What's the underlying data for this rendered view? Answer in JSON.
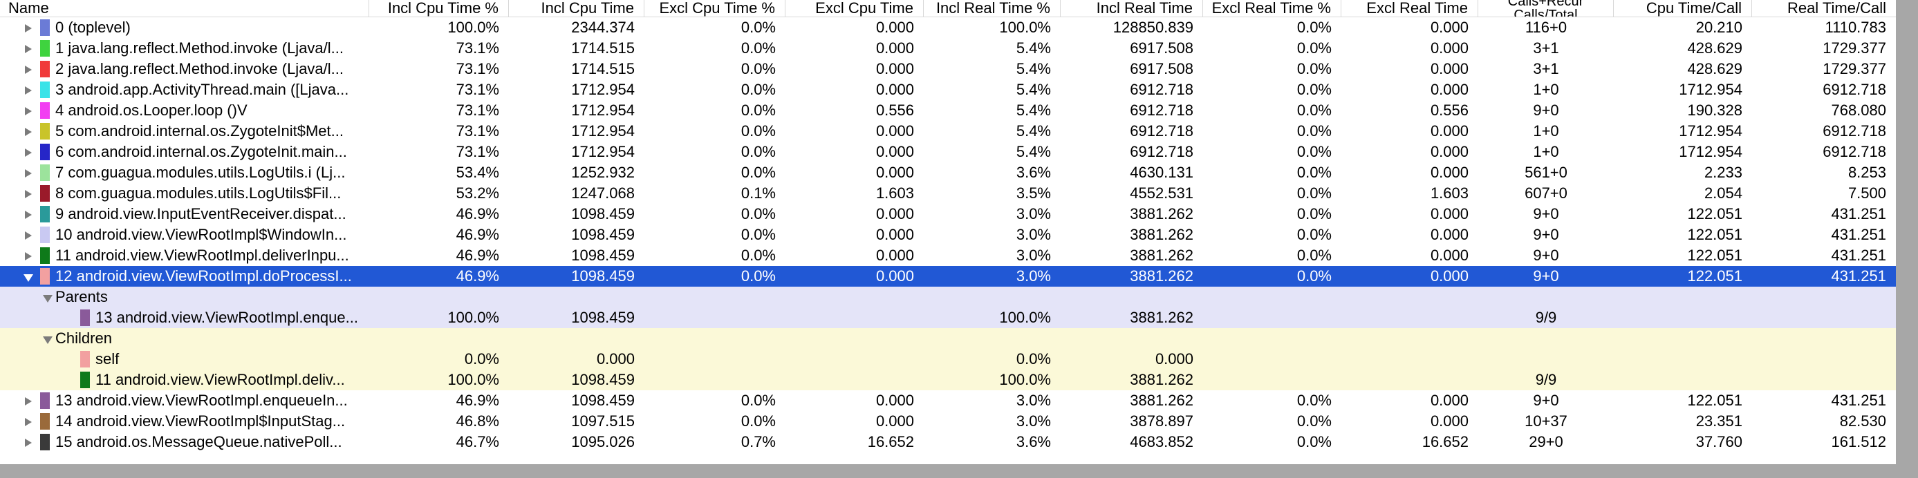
{
  "columns": {
    "name": "Name",
    "incl_cpu_pct": "Incl Cpu Time %",
    "incl_cpu": "Incl Cpu Time",
    "excl_cpu_pct": "Excl Cpu Time %",
    "excl_cpu": "Excl Cpu Time",
    "incl_real_pct": "Incl Real Time %",
    "incl_real": "Incl Real Time",
    "excl_real_pct": "Excl Real Time %",
    "excl_real": "Excl Real Time",
    "calls_line1": "Calls+Recur",
    "calls_line2": "Calls/Total",
    "cpu_per_call": "Cpu Time/Call",
    "real_per_call": "Real Time/Call"
  },
  "rows": [
    {
      "name": "0 (toplevel)",
      "color": "#6b7bd6",
      "incl_cpu_pct": "100.0%",
      "incl_cpu": "2344.374",
      "excl_cpu_pct": "0.0%",
      "excl_cpu": "0.000",
      "incl_real_pct": "100.0%",
      "incl_real": "128850.839",
      "excl_real_pct": "0.0%",
      "excl_real": "0.000",
      "calls": "116+0",
      "cpu_per_call": "20.210",
      "real_per_call": "1110.783"
    },
    {
      "name": "1 java.lang.reflect.Method.invoke (Ljava/l...",
      "color": "#3fd33f",
      "incl_cpu_pct": "73.1%",
      "incl_cpu": "1714.515",
      "excl_cpu_pct": "0.0%",
      "excl_cpu": "0.000",
      "incl_real_pct": "5.4%",
      "incl_real": "6917.508",
      "excl_real_pct": "0.0%",
      "excl_real": "0.000",
      "calls": "3+1",
      "cpu_per_call": "428.629",
      "real_per_call": "1729.377"
    },
    {
      "name": "2 java.lang.reflect.Method.invoke (Ljava/l...",
      "color": "#f03a3a",
      "incl_cpu_pct": "73.1%",
      "incl_cpu": "1714.515",
      "excl_cpu_pct": "0.0%",
      "excl_cpu": "0.000",
      "incl_real_pct": "5.4%",
      "incl_real": "6917.508",
      "excl_real_pct": "0.0%",
      "excl_real": "0.000",
      "calls": "3+1",
      "cpu_per_call": "428.629",
      "real_per_call": "1729.377"
    },
    {
      "name": "3 android.app.ActivityThread.main ([Ljava...",
      "color": "#3ae3e8",
      "incl_cpu_pct": "73.1%",
      "incl_cpu": "1712.954",
      "excl_cpu_pct": "0.0%",
      "excl_cpu": "0.000",
      "incl_real_pct": "5.4%",
      "incl_real": "6912.718",
      "excl_real_pct": "0.0%",
      "excl_real": "0.000",
      "calls": "1+0",
      "cpu_per_call": "1712.954",
      "real_per_call": "6912.718"
    },
    {
      "name": "4 android.os.Looper.loop ()V",
      "color": "#f23ef2",
      "incl_cpu_pct": "73.1%",
      "incl_cpu": "1712.954",
      "excl_cpu_pct": "0.0%",
      "excl_cpu": "0.556",
      "incl_real_pct": "5.4%",
      "incl_real": "6912.718",
      "excl_real_pct": "0.0%",
      "excl_real": "0.556",
      "calls": "9+0",
      "cpu_per_call": "190.328",
      "real_per_call": "768.080"
    },
    {
      "name": "5 com.android.internal.os.ZygoteInit$Met...",
      "color": "#c9c42a",
      "incl_cpu_pct": "73.1%",
      "incl_cpu": "1712.954",
      "excl_cpu_pct": "0.0%",
      "excl_cpu": "0.000",
      "incl_real_pct": "5.4%",
      "incl_real": "6912.718",
      "excl_real_pct": "0.0%",
      "excl_real": "0.000",
      "calls": "1+0",
      "cpu_per_call": "1712.954",
      "real_per_call": "6912.718"
    },
    {
      "name": "6 com.android.internal.os.ZygoteInit.main...",
      "color": "#2626c8",
      "incl_cpu_pct": "73.1%",
      "incl_cpu": "1712.954",
      "excl_cpu_pct": "0.0%",
      "excl_cpu": "0.000",
      "incl_real_pct": "5.4%",
      "incl_real": "6912.718",
      "excl_real_pct": "0.0%",
      "excl_real": "0.000",
      "calls": "1+0",
      "cpu_per_call": "1712.954",
      "real_per_call": "6912.718"
    },
    {
      "name": "7 com.guagua.modules.utils.LogUtils.i (Lj...",
      "color": "#9ce39c",
      "incl_cpu_pct": "53.4%",
      "incl_cpu": "1252.932",
      "excl_cpu_pct": "0.0%",
      "excl_cpu": "0.000",
      "incl_real_pct": "3.6%",
      "incl_real": "4630.131",
      "excl_real_pct": "0.0%",
      "excl_real": "0.000",
      "calls": "561+0",
      "cpu_per_call": "2.233",
      "real_per_call": "8.253"
    },
    {
      "name": "8 com.guagua.modules.utils.LogUtils$Fil...",
      "color": "#9a1a2a",
      "incl_cpu_pct": "53.2%",
      "incl_cpu": "1247.068",
      "excl_cpu_pct": "0.1%",
      "excl_cpu": "1.603",
      "incl_real_pct": "3.5%",
      "incl_real": "4552.531",
      "excl_real_pct": "0.0%",
      "excl_real": "1.603",
      "calls": "607+0",
      "cpu_per_call": "2.054",
      "real_per_call": "7.500"
    },
    {
      "name": "9 android.view.InputEventReceiver.dispat...",
      "color": "#2a9a9a",
      "incl_cpu_pct": "46.9%",
      "incl_cpu": "1098.459",
      "excl_cpu_pct": "0.0%",
      "excl_cpu": "0.000",
      "incl_real_pct": "3.0%",
      "incl_real": "3881.262",
      "excl_real_pct": "0.0%",
      "excl_real": "0.000",
      "calls": "9+0",
      "cpu_per_call": "122.051",
      "real_per_call": "431.251"
    },
    {
      "name": "10 android.view.ViewRootImpl$WindowIn...",
      "color": "#c9c9f2",
      "incl_cpu_pct": "46.9%",
      "incl_cpu": "1098.459",
      "excl_cpu_pct": "0.0%",
      "excl_cpu": "0.000",
      "incl_real_pct": "3.0%",
      "incl_real": "3881.262",
      "excl_real_pct": "0.0%",
      "excl_real": "0.000",
      "calls": "9+0",
      "cpu_per_call": "122.051",
      "real_per_call": "431.251"
    },
    {
      "name": "11 android.view.ViewRootImpl.deliverInpu...",
      "color": "#0e7a1a",
      "incl_cpu_pct": "46.9%",
      "incl_cpu": "1098.459",
      "excl_cpu_pct": "0.0%",
      "excl_cpu": "0.000",
      "incl_real_pct": "3.0%",
      "incl_real": "3881.262",
      "excl_real_pct": "0.0%",
      "excl_real": "0.000",
      "calls": "9+0",
      "cpu_per_call": "122.051",
      "real_per_call": "431.251"
    }
  ],
  "selected_row": {
    "name": "12 android.view.ViewRootImpl.doProcessI...",
    "color": "#f2a0a0",
    "incl_cpu_pct": "46.9%",
    "incl_cpu": "1098.459",
    "excl_cpu_pct": "0.0%",
    "excl_cpu": "0.000",
    "incl_real_pct": "3.0%",
    "incl_real": "3881.262",
    "excl_real_pct": "0.0%",
    "excl_real": "0.000",
    "calls": "9+0",
    "cpu_per_call": "122.051",
    "real_per_call": "431.251"
  },
  "parents": {
    "label": "Parents",
    "items": [
      {
        "name": "13 android.view.ViewRootImpl.enque...",
        "color": "#8a5a9a",
        "incl_cpu_pct": "100.0%",
        "incl_cpu": "1098.459",
        "incl_real_pct": "100.0%",
        "incl_real": "3881.262",
        "calls": "9/9"
      }
    ]
  },
  "children": {
    "label": "Children",
    "items": [
      {
        "name": "self",
        "color": "#f2a0a0",
        "incl_cpu_pct": "0.0%",
        "incl_cpu": "0.000",
        "incl_real_pct": "0.0%",
        "incl_real": "0.000",
        "calls": ""
      },
      {
        "name": "11 android.view.ViewRootImpl.deliv...",
        "color": "#0e7a1a",
        "incl_cpu_pct": "100.0%",
        "incl_cpu": "1098.459",
        "incl_real_pct": "100.0%",
        "incl_real": "3881.262",
        "calls": "9/9"
      }
    ]
  },
  "rows_after": [
    {
      "name": "13 android.view.ViewRootImpl.enqueueIn...",
      "color": "#8a5a9a",
      "incl_cpu_pct": "46.9%",
      "incl_cpu": "1098.459",
      "excl_cpu_pct": "0.0%",
      "excl_cpu": "0.000",
      "incl_real_pct": "3.0%",
      "incl_real": "3881.262",
      "excl_real_pct": "0.0%",
      "excl_real": "0.000",
      "calls": "9+0",
      "cpu_per_call": "122.051",
      "real_per_call": "431.251"
    },
    {
      "name": "14 android.view.ViewRootImpl$InputStag...",
      "color": "#9a6a3a",
      "incl_cpu_pct": "46.8%",
      "incl_cpu": "1097.515",
      "excl_cpu_pct": "0.0%",
      "excl_cpu": "0.000",
      "incl_real_pct": "3.0%",
      "incl_real": "3878.897",
      "excl_real_pct": "0.0%",
      "excl_real": "0.000",
      "calls": "10+37",
      "cpu_per_call": "23.351",
      "real_per_call": "82.530"
    },
    {
      "name": "15 android.os.MessageQueue.nativePoll...",
      "color": "#3a3a3a",
      "incl_cpu_pct": "46.7%",
      "incl_cpu": "1095.026",
      "excl_cpu_pct": "0.7%",
      "excl_cpu": "16.652",
      "incl_real_pct": "3.6%",
      "incl_real": "4683.852",
      "excl_real_pct": "0.0%",
      "excl_real": "16.652",
      "calls": "29+0",
      "cpu_per_call": "37.760",
      "real_per_call": "161.512"
    }
  ]
}
